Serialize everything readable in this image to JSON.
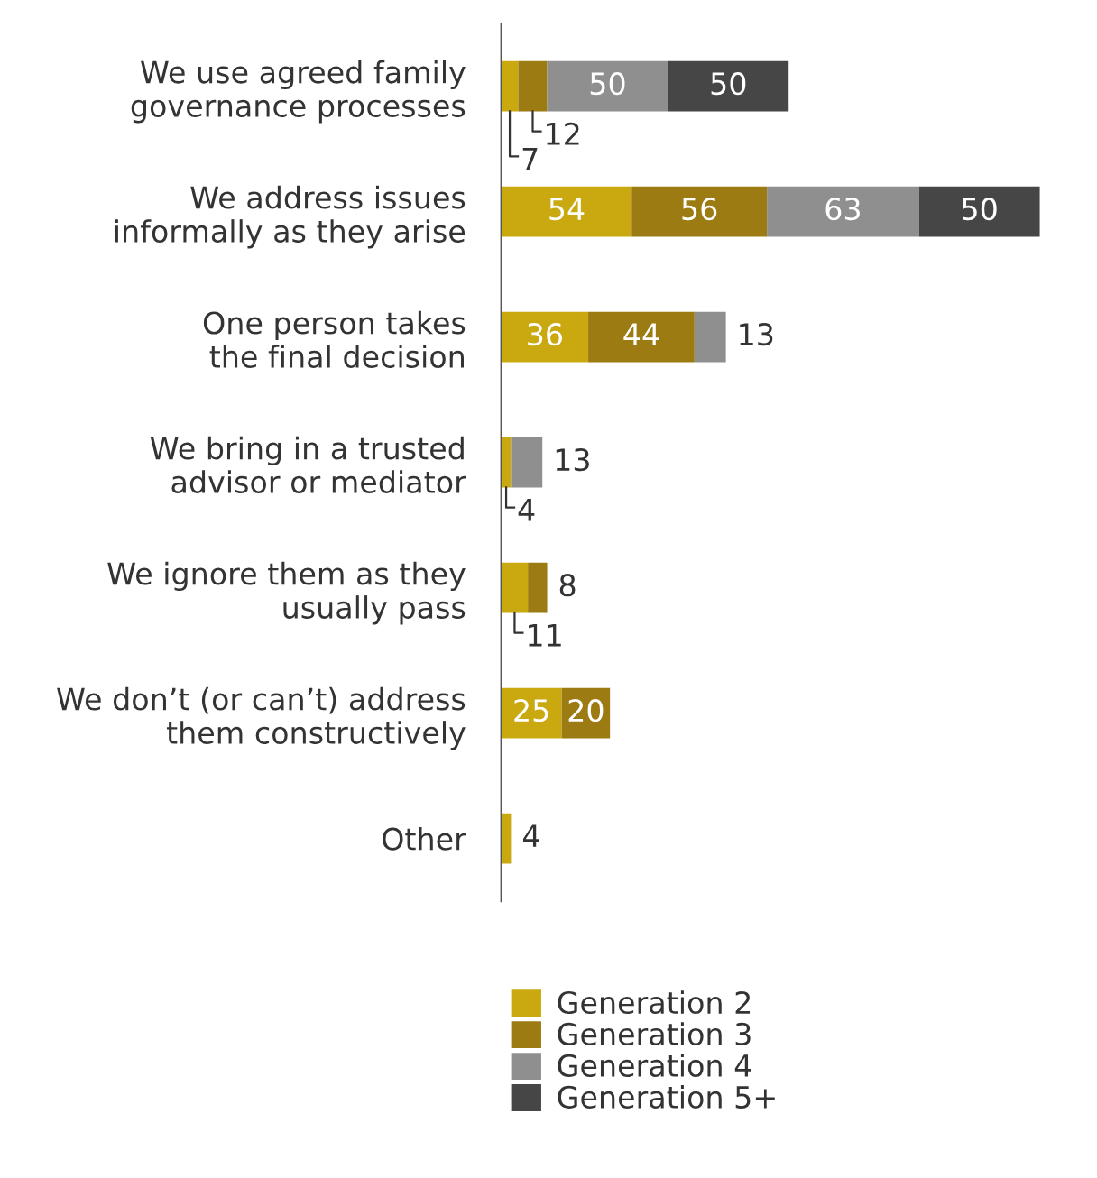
{
  "chart_data": {
    "type": "bar",
    "orientation": "horizontal",
    "stacked": true,
    "data_labels": true,
    "legend": "bottom",
    "grid": false,
    "categories": [
      "We use agreed family\ngovernance processes",
      "We address issues\ninformally as they arise",
      "One person takes\nthe final decision",
      "We bring in a trusted\nadvisor or mediator",
      "We ignore them as they\nusually pass",
      "We don’t (or can’t) address\nthem constructively",
      "Other"
    ],
    "series": [
      {
        "name": "Generation 2",
        "color": "#c9a90f",
        "values": [
          7,
          54,
          36,
          4,
          11,
          25,
          4
        ]
      },
      {
        "name": "Generation 3",
        "color": "#9b7b12",
        "values": [
          12,
          56,
          44,
          null,
          8,
          20,
          null
        ]
      },
      {
        "name": "Generation 4",
        "color": "#8f8f8f",
        "values": [
          50,
          63,
          13,
          13,
          null,
          null,
          null
        ]
      },
      {
        "name": "Generation 5+",
        "color": "#464646",
        "values": [
          50,
          50,
          null,
          null,
          null,
          null,
          null
        ]
      }
    ]
  }
}
